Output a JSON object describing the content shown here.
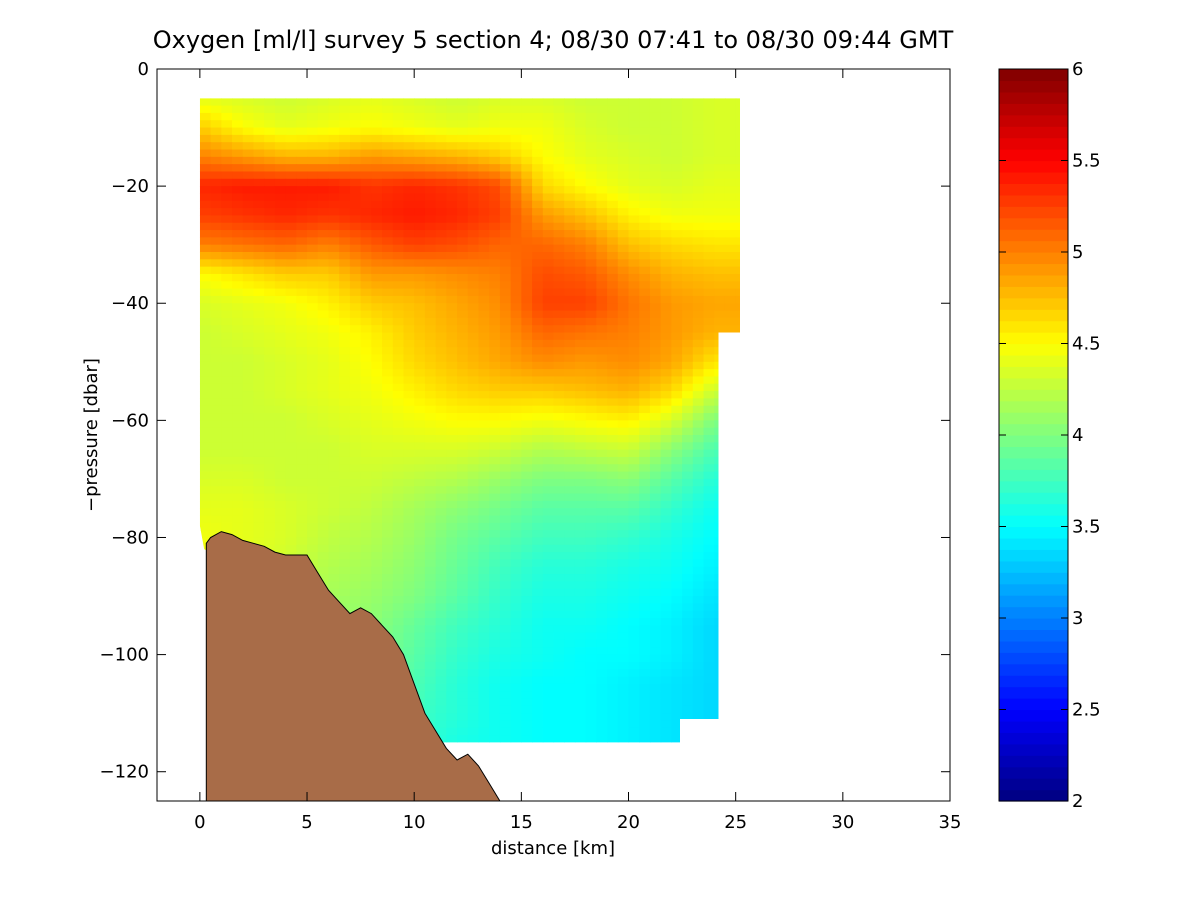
{
  "chart_data": {
    "type": "heatmap",
    "title": "Oxygen [ml/l] survey 5 section 4; 08/30 07:41 to 08/30 09:44 GMT",
    "xlabel": "distance [km]",
    "ylabel": "−pressure [dbar]",
    "xlim": [
      -2,
      35
    ],
    "ylim": [
      -125,
      0
    ],
    "xticks": [
      0,
      5,
      10,
      15,
      20,
      25,
      30,
      35
    ],
    "yticks": [
      0,
      -20,
      -40,
      -60,
      -80,
      -100,
      -120
    ],
    "xtick_labels": [
      "0",
      "5",
      "10",
      "15",
      "20",
      "25",
      "30",
      "35"
    ],
    "ytick_labels": [
      "0",
      "−20",
      "−40",
      "−60",
      "−80",
      "−100",
      "−120"
    ],
    "grid": false,
    "colorbar": {
      "range": [
        2,
        6
      ],
      "ticks": [
        2,
        2.5,
        3,
        3.5,
        4,
        4.5,
        5,
        5.5,
        6
      ],
      "tick_labels": [
        "2",
        "2.5",
        "3",
        "3.5",
        "4",
        "4.5",
        "5",
        "5.5",
        "6"
      ],
      "colormap": "jet"
    },
    "field": {
      "x": [
        0,
        2,
        4,
        6,
        8,
        10,
        12,
        14,
        16,
        18,
        20,
        22,
        24
      ],
      "y": [
        -5,
        -10,
        -15,
        -20,
        -25,
        -30,
        -35,
        -40,
        -45,
        -50,
        -55,
        -60,
        -65,
        -70,
        -75,
        -80,
        -85,
        -90,
        -95,
        -100,
        -105,
        -110,
        -115
      ],
      "values": [
        [
          4.4,
          4.35,
          4.3,
          4.35,
          4.4,
          4.35,
          4.3,
          4.35,
          4.35,
          4.3,
          4.3,
          4.3,
          4.35
        ],
        [
          4.7,
          4.5,
          4.4,
          4.45,
          4.5,
          4.45,
          4.4,
          4.45,
          4.45,
          4.35,
          4.3,
          4.3,
          4.35
        ],
        [
          5.0,
          4.9,
          4.8,
          4.8,
          4.9,
          4.85,
          4.8,
          4.7,
          4.5,
          4.4,
          4.35,
          4.3,
          4.35
        ],
        [
          5.35,
          5.4,
          5.4,
          5.4,
          5.3,
          5.35,
          5.3,
          5.2,
          4.65,
          4.5,
          4.4,
          4.35,
          4.4
        ],
        [
          5.25,
          5.3,
          5.35,
          5.3,
          5.35,
          5.4,
          5.35,
          5.25,
          4.9,
          4.75,
          4.55,
          4.45,
          4.45
        ],
        [
          5.0,
          5.05,
          5.1,
          5.0,
          5.15,
          5.25,
          5.2,
          5.1,
          5.1,
          5.0,
          4.75,
          4.65,
          4.6
        ],
        [
          4.5,
          4.6,
          4.7,
          4.7,
          4.9,
          4.9,
          4.95,
          5.0,
          5.2,
          5.15,
          4.95,
          4.8,
          4.75
        ],
        [
          4.35,
          4.4,
          4.45,
          4.55,
          4.7,
          4.75,
          4.85,
          4.95,
          5.25,
          5.25,
          5.05,
          4.9,
          4.85
        ],
        [
          4.3,
          4.35,
          4.4,
          4.45,
          4.55,
          4.7,
          4.8,
          4.9,
          5.1,
          5.05,
          5.0,
          4.9,
          4.8
        ],
        [
          4.3,
          4.3,
          4.35,
          4.4,
          4.5,
          4.65,
          4.75,
          4.85,
          4.95,
          4.9,
          4.95,
          4.85,
          4.6
        ],
        [
          4.3,
          4.3,
          4.35,
          4.4,
          4.45,
          4.55,
          4.65,
          4.7,
          4.7,
          4.75,
          4.8,
          4.65,
          4.3
        ],
        [
          4.3,
          4.3,
          4.3,
          4.35,
          4.4,
          4.45,
          4.5,
          4.5,
          4.45,
          4.5,
          4.55,
          4.35,
          4.0
        ],
        [
          4.3,
          4.3,
          4.3,
          4.3,
          4.35,
          4.35,
          4.35,
          4.3,
          4.2,
          4.25,
          4.3,
          4.05,
          3.8
        ],
        [
          4.35,
          4.35,
          4.3,
          4.3,
          4.3,
          4.25,
          4.2,
          4.1,
          4.0,
          4.0,
          4.05,
          3.85,
          3.65
        ],
        [
          4.4,
          4.4,
          4.35,
          4.3,
          4.25,
          4.15,
          4.05,
          3.95,
          3.85,
          3.85,
          3.85,
          3.7,
          3.55
        ],
        [
          4.45,
          4.4,
          4.35,
          4.25,
          4.2,
          4.1,
          3.95,
          3.85,
          3.75,
          3.75,
          3.7,
          3.6,
          3.5
        ],
        [
          4.45,
          4.4,
          4.3,
          4.2,
          4.15,
          4.05,
          3.9,
          3.75,
          3.65,
          3.65,
          3.6,
          3.55,
          3.45
        ],
        [
          4.4,
          4.35,
          4.25,
          4.15,
          4.1,
          4.0,
          3.85,
          3.7,
          3.6,
          3.6,
          3.55,
          3.5,
          3.4
        ],
        [
          4.35,
          4.3,
          4.2,
          4.1,
          4.05,
          3.9,
          3.75,
          3.65,
          3.55,
          3.55,
          3.5,
          3.45,
          3.35
        ],
        [
          4.3,
          4.25,
          4.15,
          4.05,
          4.0,
          3.85,
          3.7,
          3.6,
          3.55,
          3.5,
          3.5,
          3.45,
          3.35
        ],
        [
          4.25,
          4.2,
          4.1,
          4.0,
          3.95,
          3.8,
          3.65,
          3.55,
          3.5,
          3.5,
          3.45,
          3.4,
          3.35
        ],
        [
          4.2,
          4.15,
          4.05,
          3.95,
          3.9,
          3.75,
          3.65,
          3.55,
          3.5,
          3.5,
          3.45,
          3.4,
          3.35
        ],
        [
          4.15,
          4.1,
          4.0,
          3.9,
          3.85,
          3.7,
          3.6,
          3.55,
          3.5,
          3.5,
          3.45,
          3.4,
          3.35
        ]
      ]
    },
    "data_region": [
      [
        0,
        -5
      ],
      [
        25.2,
        -5
      ],
      [
        25.2,
        -45
      ],
      [
        24.2,
        -45
      ],
      [
        24.2,
        -111
      ],
      [
        22.4,
        -111
      ],
      [
        22.4,
        -115
      ],
      [
        11,
        -115
      ],
      [
        8,
        -100
      ],
      [
        5,
        -90
      ],
      [
        0.2,
        -82
      ],
      [
        0,
        -78
      ]
    ],
    "bottom_topography": {
      "x": [
        0.3,
        0.5,
        1.0,
        1.5,
        2.0,
        2.5,
        3.0,
        3.5,
        4.0,
        5.0,
        5.5,
        6.0,
        6.5,
        7.0,
        7.5,
        8.0,
        8.5,
        9.0,
        9.5,
        10.0,
        10.5,
        11.0,
        11.5,
        12.0,
        12.5,
        13.0,
        13.5,
        14.0
      ],
      "y": [
        -81,
        -80,
        -79,
        -79.5,
        -80.5,
        -81,
        -81.5,
        -82.5,
        -83,
        -83,
        -86,
        -89,
        -91,
        -93,
        -92,
        -93,
        -95,
        -97,
        -100,
        -105,
        -110,
        -113,
        -116,
        -118,
        -117,
        -119,
        -122,
        -125
      ],
      "color": "#a86c48"
    }
  }
}
